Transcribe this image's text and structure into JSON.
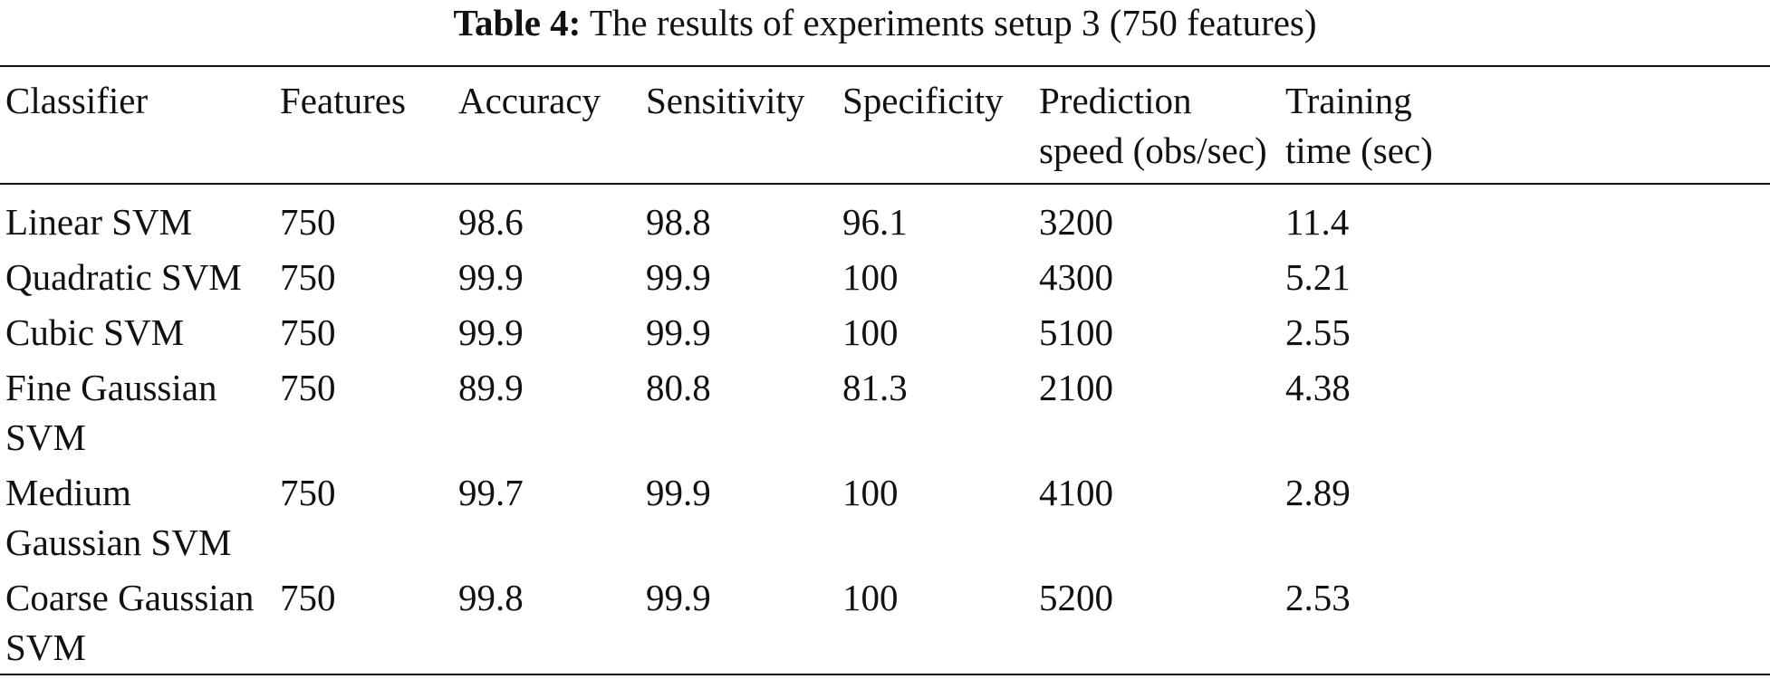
{
  "caption": {
    "label": "Table 4:",
    "text": "The results of experiments setup 3 (750 features)"
  },
  "table": {
    "columns": [
      [
        "Classifier"
      ],
      [
        "Features"
      ],
      [
        "Accuracy"
      ],
      [
        "Sensitivity"
      ],
      [
        "Specificity"
      ],
      [
        "Prediction",
        "speed (obs/sec)"
      ],
      [
        "Training",
        "time (sec)"
      ]
    ],
    "rows": [
      {
        "classifier": [
          "Linear SVM"
        ],
        "features": "750",
        "accuracy": "98.6",
        "sensitivity": "98.8",
        "specificity": "96.1",
        "prediction_speed": "3200",
        "training_time": "11.4"
      },
      {
        "classifier": [
          "Quadratic SVM"
        ],
        "features": "750",
        "accuracy": "99.9",
        "sensitivity": "99.9",
        "specificity": "100",
        "prediction_speed": "4300",
        "training_time": "5.21"
      },
      {
        "classifier": [
          "Cubic SVM"
        ],
        "features": "750",
        "accuracy": "99.9",
        "sensitivity": "99.9",
        "specificity": "100",
        "prediction_speed": "5100",
        "training_time": "2.55"
      },
      {
        "classifier": [
          "Fine Gaussian",
          "SVM"
        ],
        "features": "750",
        "accuracy": "89.9",
        "sensitivity": "80.8",
        "specificity": "81.3",
        "prediction_speed": "2100",
        "training_time": "4.38"
      },
      {
        "classifier": [
          "Medium",
          "Gaussian SVM"
        ],
        "features": "750",
        "accuracy": "99.7",
        "sensitivity": "99.9",
        "specificity": "100",
        "prediction_speed": "4100",
        "training_time": "2.89"
      },
      {
        "classifier": [
          "Coarse Gaussian",
          "SVM"
        ],
        "features": "750",
        "accuracy": "99.8",
        "sensitivity": "99.9",
        "specificity": "100",
        "prediction_speed": "5200",
        "training_time": "2.53"
      }
    ]
  }
}
